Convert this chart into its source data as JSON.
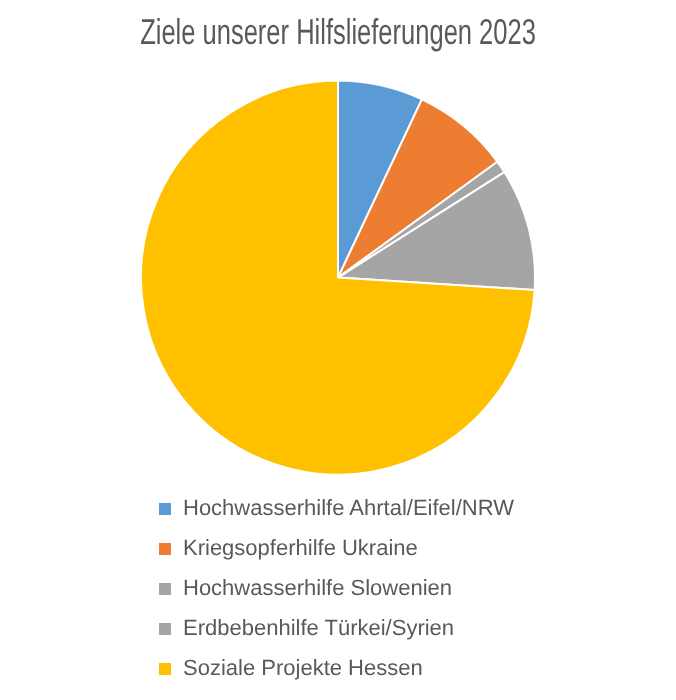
{
  "chart_data": {
    "type": "pie",
    "title": "Ziele unserer Hilfslieferungen 2023",
    "categories": [
      "Hochwasserhilfe Ahrtal/Eifel/NRW",
      "Kriegsopferhilfe Ukraine",
      "Hochwasserhilfe Slowenien",
      "Erdbebenhilfe Türkei/Syrien",
      "Soziale Projekte Hessen"
    ],
    "values": [
      7,
      8,
      1,
      10,
      74
    ],
    "colors": [
      "#5b9bd5",
      "#ed7d31",
      "#a5a5a5",
      "#a5a5a5",
      "#ffc000"
    ],
    "legend": "bottom"
  }
}
